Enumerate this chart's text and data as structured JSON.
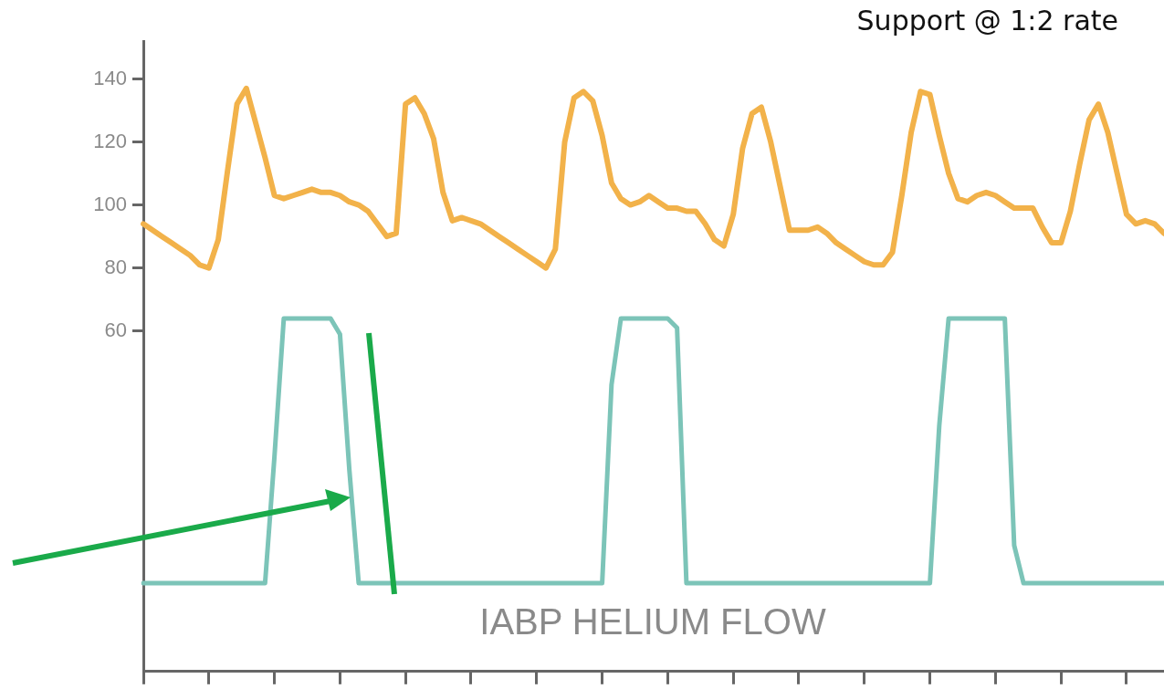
{
  "chart_data": {
    "type": "line",
    "title": "Support @ 1:2 rate",
    "annotations": [
      "IABP HELIUM FLOW"
    ],
    "categories": [
      null,
      null,
      null,
      null,
      null,
      null,
      null,
      null,
      null,
      null,
      null,
      null,
      null,
      null,
      null,
      null,
      null,
      null,
      null,
      null,
      null,
      null,
      null,
      null,
      null,
      null,
      null,
      null,
      null,
      null,
      null,
      null,
      null,
      null,
      null,
      null,
      null,
      null,
      null,
      null,
      null,
      null,
      null,
      null,
      null,
      null,
      null,
      null,
      null,
      null,
      null,
      null,
      null,
      null,
      null,
      null,
      null,
      null,
      null,
      null,
      null,
      null,
      null,
      null,
      null,
      null,
      null,
      null,
      null,
      null,
      null,
      null,
      null,
      null,
      null,
      null,
      null,
      null,
      null,
      null,
      null,
      null,
      null,
      null,
      null,
      null,
      null,
      null,
      null,
      null,
      null,
      null,
      null,
      null,
      null,
      null,
      null,
      null,
      null,
      null,
      null,
      null,
      null,
      null,
      null,
      null,
      null,
      null,
      null,
      null
    ],
    "ylim": [
      -48,
      152
    ],
    "yticks": [
      60,
      80,
      100,
      120,
      140
    ],
    "tick_labels": "y",
    "grid": false,
    "marker": "none",
    "line_style": "solid",
    "series": [
      {
        "color": "#f2b24a",
        "values": [
          94,
          92,
          90,
          88,
          86,
          84,
          81,
          80,
          89,
          111,
          132,
          137,
          126,
          115,
          103,
          102,
          103,
          104,
          105,
          104,
          104,
          103,
          101,
          100,
          98,
          94,
          90,
          91,
          132,
          134,
          129,
          121,
          104,
          95,
          96,
          95,
          94,
          92,
          90,
          88,
          86,
          84,
          82,
          80,
          86,
          120,
          134,
          136,
          133,
          122,
          107,
          102,
          100,
          101,
          103,
          101,
          99,
          99,
          98,
          98,
          94,
          89,
          87,
          97,
          118,
          129,
          131,
          120,
          106,
          92,
          92,
          92,
          93,
          91,
          88,
          86,
          84,
          82,
          81,
          81,
          85,
          103,
          123,
          136,
          135,
          122,
          110,
          102,
          101,
          103,
          104,
          103,
          101,
          99,
          99,
          99,
          93,
          88,
          88,
          98,
          113,
          127,
          132,
          123,
          110,
          97,
          94,
          95,
          94,
          91
        ]
      },
      {
        "color": "#7cc4b8",
        "values": [
          -20,
          -20,
          -20,
          -20,
          -20,
          -20,
          -20,
          -20,
          -20,
          -20,
          -20,
          -20,
          -20,
          -20,
          20,
          64,
          64,
          64,
          64,
          64,
          64,
          59,
          16,
          -20,
          -20,
          -20,
          -20,
          -20,
          -20,
          -20,
          -20,
          -20,
          -20,
          -20,
          -20,
          -20,
          -20,
          -20,
          -20,
          -20,
          -20,
          -20,
          -20,
          -20,
          -20,
          -20,
          -20,
          -20,
          -20,
          -20,
          43,
          64,
          64,
          64,
          64,
          64,
          64,
          61,
          -20,
          -20,
          -20,
          -20,
          -20,
          -20,
          -20,
          -20,
          -20,
          -20,
          -20,
          -20,
          -20,
          -20,
          -20,
          -20,
          -20,
          -20,
          -20,
          -20,
          -20,
          -20,
          -20,
          -20,
          -20,
          -20,
          -20,
          30,
          64,
          64,
          64,
          64,
          64,
          64,
          64,
          -8,
          -20,
          -20,
          -20,
          -20,
          -20,
          -20,
          -20,
          -20,
          -20,
          -20,
          -20,
          -20,
          -20,
          -20,
          -20,
          -20
        ]
      }
    ]
  }
}
